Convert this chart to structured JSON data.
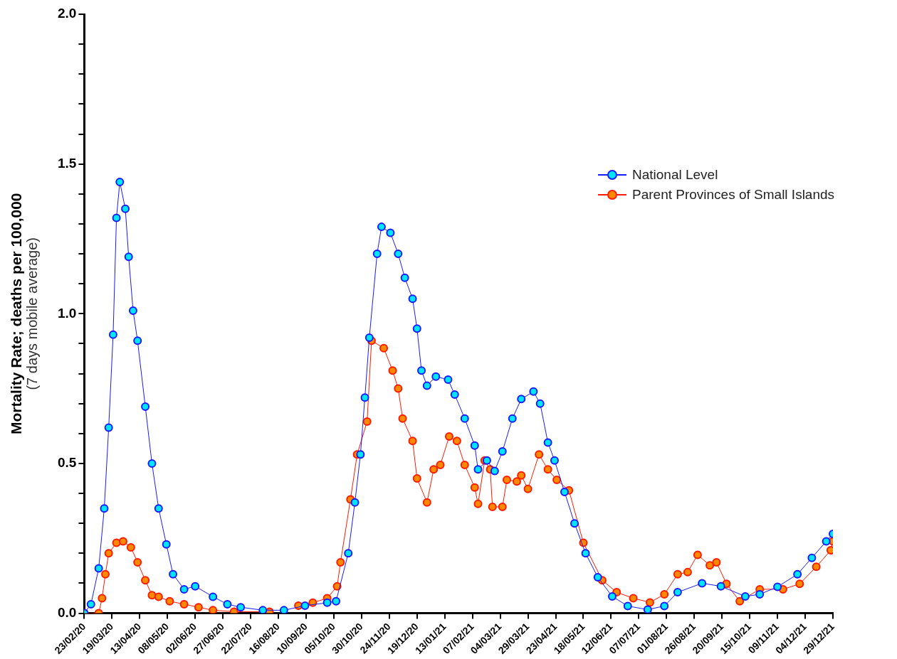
{
  "chart_data": {
    "type": "line",
    "ylabel": "Mortality Rate; deaths per 100,000\n(7 days mobile average)",
    "marker": "circle",
    "legend": "top right",
    "grid": false,
    "xlim": [
      "2020-02-23",
      "2021-12-29"
    ],
    "xticks": [
      {
        "value": "2020-02-23",
        "label": "23/02/20"
      },
      {
        "value": "2020-03-19",
        "label": "19/03/20"
      },
      {
        "value": "2020-04-13",
        "label": "13/04/20"
      },
      {
        "value": "2020-05-08",
        "label": "08/05/20"
      },
      {
        "value": "2020-06-02",
        "label": "02/06/20"
      },
      {
        "value": "2020-06-27",
        "label": "27/06/20"
      },
      {
        "value": "2020-07-22",
        "label": "22/07/20"
      },
      {
        "value": "2020-08-16",
        "label": "16/08/20"
      },
      {
        "value": "2020-09-10",
        "label": "10/09/20"
      },
      {
        "value": "2020-10-05",
        "label": "05/10/20"
      },
      {
        "value": "2020-10-30",
        "label": "30/10/20"
      },
      {
        "value": "2020-11-24",
        "label": "24/11/20"
      },
      {
        "value": "2020-12-19",
        "label": "19/12/20"
      },
      {
        "value": "2021-01-13",
        "label": "13/01/21"
      },
      {
        "value": "2021-02-07",
        "label": "07/02/21"
      },
      {
        "value": "2021-03-04",
        "label": "04/03/21"
      },
      {
        "value": "2021-03-29",
        "label": "29/03/21"
      },
      {
        "value": "2021-04-23",
        "label": "23/04/21"
      },
      {
        "value": "2021-05-18",
        "label": "18/05/21"
      },
      {
        "value": "2021-06-12",
        "label": "12/06/21"
      },
      {
        "value": "2021-07-07",
        "label": "07/07/21"
      },
      {
        "value": "2021-08-01",
        "label": "01/08/21"
      },
      {
        "value": "2021-08-26",
        "label": "26/08/21"
      },
      {
        "value": "2021-09-20",
        "label": "20/09/21"
      },
      {
        "value": "2021-10-15",
        "label": "15/10/21"
      },
      {
        "value": "2021-11-09",
        "label": "09/11/21"
      },
      {
        "value": "2021-12-04",
        "label": "04/12/21"
      },
      {
        "value": "2021-12-29",
        "label": "29/12/21"
      }
    ],
    "ylim": [
      0,
      2
    ],
    "yticks": [
      {
        "value": 0,
        "label": "0.0"
      },
      {
        "value": 0.1,
        "label": null
      },
      {
        "value": 0.2,
        "label": null
      },
      {
        "value": 0.3,
        "label": null
      },
      {
        "value": 0.4,
        "label": null
      },
      {
        "value": 0.5,
        "label": "0.5"
      },
      {
        "value": 0.6,
        "label": null
      },
      {
        "value": 0.7,
        "label": null
      },
      {
        "value": 0.8,
        "label": null
      },
      {
        "value": 0.9,
        "label": null
      },
      {
        "value": 1,
        "label": "1.0"
      },
      {
        "value": 1.1,
        "label": null
      },
      {
        "value": 1.2,
        "label": null
      },
      {
        "value": 1.3,
        "label": null
      },
      {
        "value": 1.4,
        "label": null
      },
      {
        "value": 1.5,
        "label": "1.5"
      },
      {
        "value": 1.6,
        "label": null
      },
      {
        "value": 1.7,
        "label": null
      },
      {
        "value": 1.8,
        "label": null
      },
      {
        "value": 1.9,
        "label": null
      },
      {
        "value": 2,
        "label": "2.0"
      }
    ],
    "series": [
      {
        "name": "National Level",
        "color": "#1a1aff",
        "x": [
          "2020-02-23",
          "2020-02-29",
          "2020-03-07",
          "2020-03-12",
          "2020-03-16",
          "2020-03-20",
          "2020-03-23",
          "2020-03-26",
          "2020-03-31",
          "2020-04-03",
          "2020-04-07",
          "2020-04-11",
          "2020-04-18",
          "2020-04-24",
          "2020-04-30",
          "2020-05-07",
          "2020-05-13",
          "2020-05-23",
          "2020-06-02",
          "2020-06-18",
          "2020-07-01",
          "2020-07-13",
          "2020-08-02",
          "2020-08-21",
          "2020-09-09",
          "2020-09-29",
          "2020-10-07",
          "2020-10-18",
          "2020-10-24",
          "2020-10-29",
          "2020-11-02",
          "2020-11-06",
          "2020-11-13",
          "2020-11-17",
          "2020-11-25",
          "2020-12-02",
          "2020-12-08",
          "2020-12-15",
          "2020-12-19",
          "2020-12-23",
          "2020-12-28",
          "2021-01-05",
          "2021-01-16",
          "2021-01-22",
          "2021-01-31",
          "2021-02-09",
          "2021-02-12",
          "2021-02-20",
          "2021-02-27",
          "2021-03-06",
          "2021-03-15",
          "2021-03-23",
          "2021-04-03",
          "2021-04-09",
          "2021-04-16",
          "2021-04-22",
          "2021-05-01",
          "2021-05-10",
          "2021-05-20",
          "2021-05-31",
          "2021-06-13",
          "2021-06-27",
          "2021-07-15",
          "2021-07-30",
          "2021-08-11",
          "2021-09-02",
          "2021-09-19",
          "2021-10-11",
          "2021-10-24",
          "2021-11-09",
          "2021-11-27",
          "2021-12-10",
          "2021-12-23",
          "2021-12-29"
        ],
        "values": [
          0.0,
          0.03,
          0.15,
          0.35,
          0.62,
          0.93,
          1.32,
          1.44,
          1.35,
          1.19,
          1.01,
          0.91,
          0.69,
          0.5,
          0.35,
          0.23,
          0.13,
          0.08,
          0.09,
          0.055,
          0.03,
          0.02,
          0.01,
          0.01,
          0.025,
          0.035,
          0.04,
          0.2,
          0.37,
          0.53,
          0.72,
          0.92,
          1.2,
          1.29,
          1.27,
          1.2,
          1.12,
          1.05,
          0.95,
          0.81,
          0.76,
          0.79,
          0.78,
          0.73,
          0.65,
          0.56,
          0.48,
          0.51,
          0.475,
          0.54,
          0.65,
          0.715,
          0.74,
          0.7,
          0.57,
          0.51,
          0.405,
          0.3,
          0.2,
          0.12,
          0.056,
          0.024,
          0.012,
          0.024,
          0.07,
          0.1,
          0.09,
          0.056,
          0.063,
          0.088,
          0.13,
          0.185,
          0.24,
          0.265
        ]
      },
      {
        "name": "Parent Provinces of Small Islands",
        "color": "#ff1a00",
        "x": [
          "2020-02-23",
          "2020-03-07",
          "2020-03-10",
          "2020-03-13",
          "2020-03-16",
          "2020-03-23",
          "2020-03-29",
          "2020-04-05",
          "2020-04-11",
          "2020-04-18",
          "2020-04-24",
          "2020-04-30",
          "2020-05-10",
          "2020-05-23",
          "2020-06-05",
          "2020-06-18",
          "2020-07-07",
          "2020-08-08",
          "2020-08-21",
          "2020-09-03",
          "2020-09-16",
          "2020-09-29",
          "2020-10-08",
          "2020-10-11",
          "2020-10-20",
          "2020-10-26",
          "2020-11-04",
          "2020-11-08",
          "2020-11-19",
          "2020-11-27",
          "2020-12-02",
          "2020-12-06",
          "2020-12-15",
          "2020-12-19",
          "2020-12-28",
          "2021-01-03",
          "2021-01-09",
          "2021-01-17",
          "2021-01-24",
          "2021-01-31",
          "2021-02-09",
          "2021-02-12",
          "2021-02-18",
          "2021-02-23",
          "2021-02-25",
          "2021-03-06",
          "2021-03-10",
          "2021-03-19",
          "2021-03-23",
          "2021-03-29",
          "2021-04-08",
          "2021-04-16",
          "2021-04-24",
          "2021-05-05",
          "2021-05-18",
          "2021-06-04",
          "2021-06-17",
          "2021-07-02",
          "2021-07-17",
          "2021-07-30",
          "2021-08-11",
          "2021-08-20",
          "2021-08-29",
          "2021-09-09",
          "2021-09-15",
          "2021-09-24",
          "2021-10-06",
          "2021-10-24",
          "2021-11-14",
          "2021-11-29",
          "2021-12-14",
          "2021-12-27",
          "2021-12-29"
        ],
        "values": [
          0.0,
          0.0,
          0.05,
          0.13,
          0.2,
          0.235,
          0.24,
          0.22,
          0.17,
          0.11,
          0.06,
          0.055,
          0.04,
          0.03,
          0.02,
          0.01,
          0.005,
          0.005,
          null,
          0.025,
          0.035,
          0.05,
          0.09,
          0.17,
          0.38,
          0.53,
          0.64,
          0.91,
          0.885,
          0.81,
          0.75,
          0.65,
          0.575,
          0.45,
          0.37,
          0.48,
          0.495,
          0.59,
          0.575,
          0.495,
          0.42,
          0.365,
          0.51,
          0.48,
          0.355,
          0.355,
          0.445,
          0.44,
          0.46,
          0.415,
          0.53,
          0.48,
          0.445,
          0.41,
          0.235,
          0.11,
          0.07,
          0.05,
          0.036,
          0.063,
          0.13,
          0.137,
          0.195,
          0.16,
          0.17,
          0.098,
          0.04,
          0.08,
          0.08,
          0.098,
          0.155,
          0.21,
          0.24
        ]
      }
    ]
  }
}
